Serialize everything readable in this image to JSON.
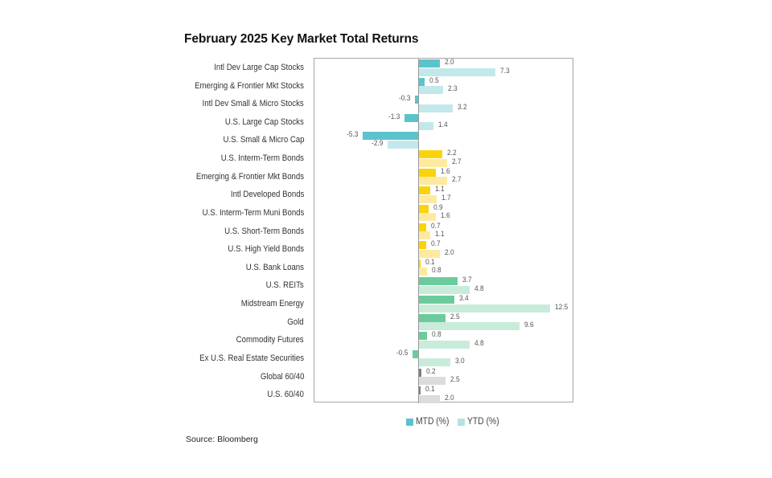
{
  "title": "February 2025 Key Market Total Returns",
  "source": "Source: Bloomberg",
  "legend": {
    "mtd_label": "MTD (%)",
    "ytd_label": "YTD (%)",
    "mtd_color": "#5bc3cb",
    "ytd_color": "#b3e2e6"
  },
  "colors": {
    "equity_mtd": "#5bc3cb",
    "equity_ytd": "#c2e8eb",
    "bond_mtd": "#fbd30a",
    "bond_ytd": "#fde9a0",
    "real_mtd": "#6ccb9c",
    "real_ytd": "#c8ecd9",
    "mix_mtd": "#7f7f7f",
    "mix_ytd": "#dcdcdc"
  },
  "chart_data": {
    "type": "bar",
    "orientation": "horizontal",
    "title": "February 2025 Key Market Total Returns",
    "xlabel": "",
    "ylabel": "",
    "xlim": [
      -10,
      14.8
    ],
    "grid": false,
    "legend_position": "bottom",
    "categories": [
      "Intl Dev Large Cap Stocks",
      "Emerging & Frontier Mkt Stocks",
      "Intl Dev Small & Micro Stocks",
      "U.S. Large Cap Stocks",
      "U.S. Small & Micro Cap",
      "U.S. Interm-Term Bonds",
      "Emerging & Frontier Mkt Bonds",
      "Intl Developed Bonds",
      "U.S. Interm-Term Muni Bonds",
      "U.S. Short-Term Bonds",
      "U.S. High Yield Bonds",
      "U.S. Bank Loans",
      "U.S. REITs",
      "Midstream Energy",
      "Gold",
      "Commodity Futures",
      "Ex U.S. Real Estate Securities",
      "Global 60/40",
      "U.S. 60/40"
    ],
    "groups": [
      "equity",
      "equity",
      "equity",
      "equity",
      "equity",
      "bond",
      "bond",
      "bond",
      "bond",
      "bond",
      "bond",
      "bond",
      "real",
      "real",
      "real",
      "real",
      "real",
      "mix",
      "mix"
    ],
    "series": [
      {
        "name": "MTD (%)",
        "values": [
          2.0,
          0.5,
          -0.3,
          -1.3,
          -5.3,
          2.2,
          1.6,
          1.1,
          0.9,
          0.7,
          0.7,
          0.1,
          3.7,
          3.4,
          2.5,
          0.8,
          -0.5,
          0.2,
          0.1
        ]
      },
      {
        "name": "YTD (%)",
        "values": [
          7.3,
          2.3,
          3.2,
          1.4,
          -2.9,
          2.7,
          2.7,
          1.7,
          1.6,
          1.1,
          2.0,
          0.8,
          4.8,
          12.5,
          9.6,
          4.8,
          3.0,
          2.5,
          2.0
        ]
      }
    ]
  }
}
